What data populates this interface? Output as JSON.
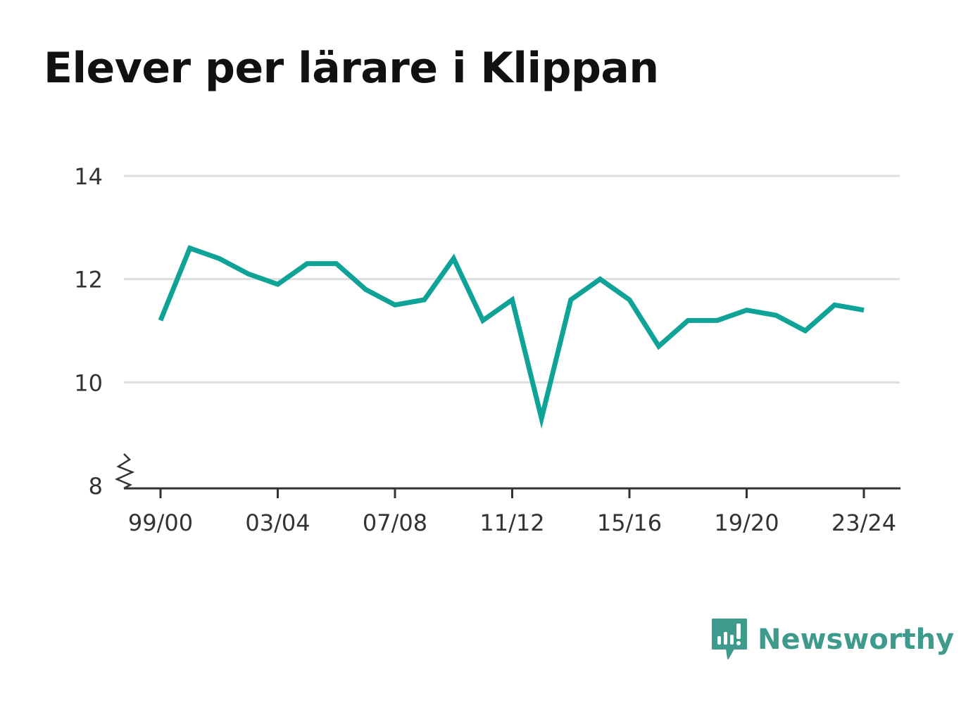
{
  "chart_data": {
    "type": "line",
    "title": "Elever per lärare i Klippan",
    "xlabel": "",
    "ylabel": "",
    "x": [
      "99/00",
      "00/01",
      "01/02",
      "02/03",
      "03/04",
      "04/05",
      "05/06",
      "06/07",
      "07/08",
      "08/09",
      "09/10",
      "10/11",
      "11/12",
      "12/13",
      "13/14",
      "14/15",
      "15/16",
      "16/17",
      "17/18",
      "18/19",
      "19/20",
      "20/21",
      "21/22",
      "22/23",
      "23/24"
    ],
    "series": [
      {
        "values": [
          11.2,
          12.6,
          12.4,
          12.1,
          11.9,
          12.3,
          12.3,
          11.8,
          11.5,
          11.6,
          12.4,
          11.2,
          11.6,
          9.3,
          11.6,
          12.0,
          11.6,
          10.7,
          11.2,
          11.2,
          11.4,
          11.3,
          11.0,
          11.5,
          11.4
        ]
      }
    ],
    "ylim": [
      8,
      14
    ],
    "yticks": [
      8,
      10,
      12,
      14
    ],
    "ytick_labels": [
      "8",
      "10",
      "12",
      "14"
    ],
    "xtick_labels": [
      "99/00",
      "03/04",
      "07/08",
      "11/12",
      "15/16",
      "19/20",
      "23/24"
    ],
    "grid": true,
    "y_axis_break": true,
    "line_color": "#0fa397"
  },
  "brand": {
    "name": "Newsworthy",
    "color": "#3f9a8e"
  }
}
